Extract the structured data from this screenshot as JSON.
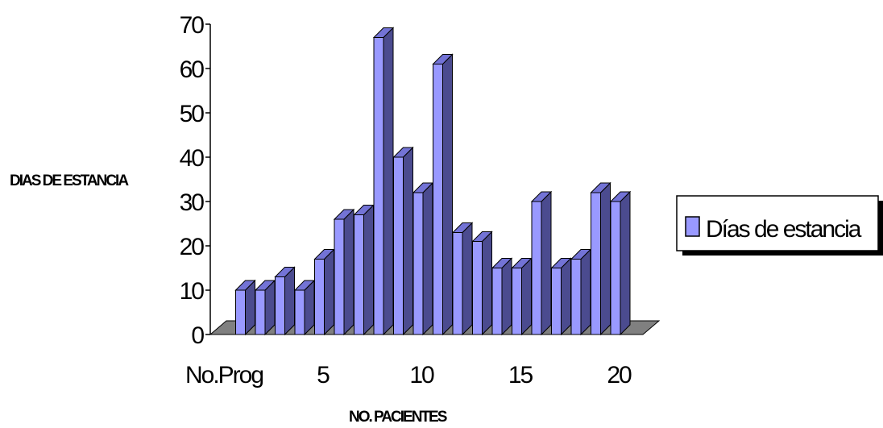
{
  "chart_data": {
    "type": "bar",
    "title": "",
    "xlabel": "NO. PACIENTES",
    "ylabel": "DIAS DE ESTANCIA",
    "ylim": [
      0,
      70
    ],
    "yticks": [
      "0",
      "10",
      "20",
      "30",
      "40",
      "50",
      "60",
      "70"
    ],
    "x_tick_labels": [
      "No.Prog",
      "5",
      "10",
      "15",
      "20"
    ],
    "categories": [
      "No.Prog",
      "1",
      "2",
      "3",
      "4",
      "5",
      "6",
      "7",
      "8",
      "9",
      "10",
      "11",
      "12",
      "13",
      "14",
      "15",
      "16",
      "17",
      "18",
      "19",
      "20"
    ],
    "series": [
      {
        "name": "Días de estancia",
        "values": [
          0,
          10,
          10,
          13,
          10,
          17,
          26,
          27,
          67,
          40,
          32,
          61,
          23,
          21,
          15,
          15,
          30,
          15,
          17,
          32,
          30
        ]
      }
    ],
    "legend_position": "right",
    "grid": false,
    "depth_3d": true,
    "colors": {
      "bar_front": "#9999ff",
      "bar_side": "#4b4b8f",
      "bar_top": "#7373d6",
      "floor": "#808080",
      "outline": "#000000"
    }
  }
}
